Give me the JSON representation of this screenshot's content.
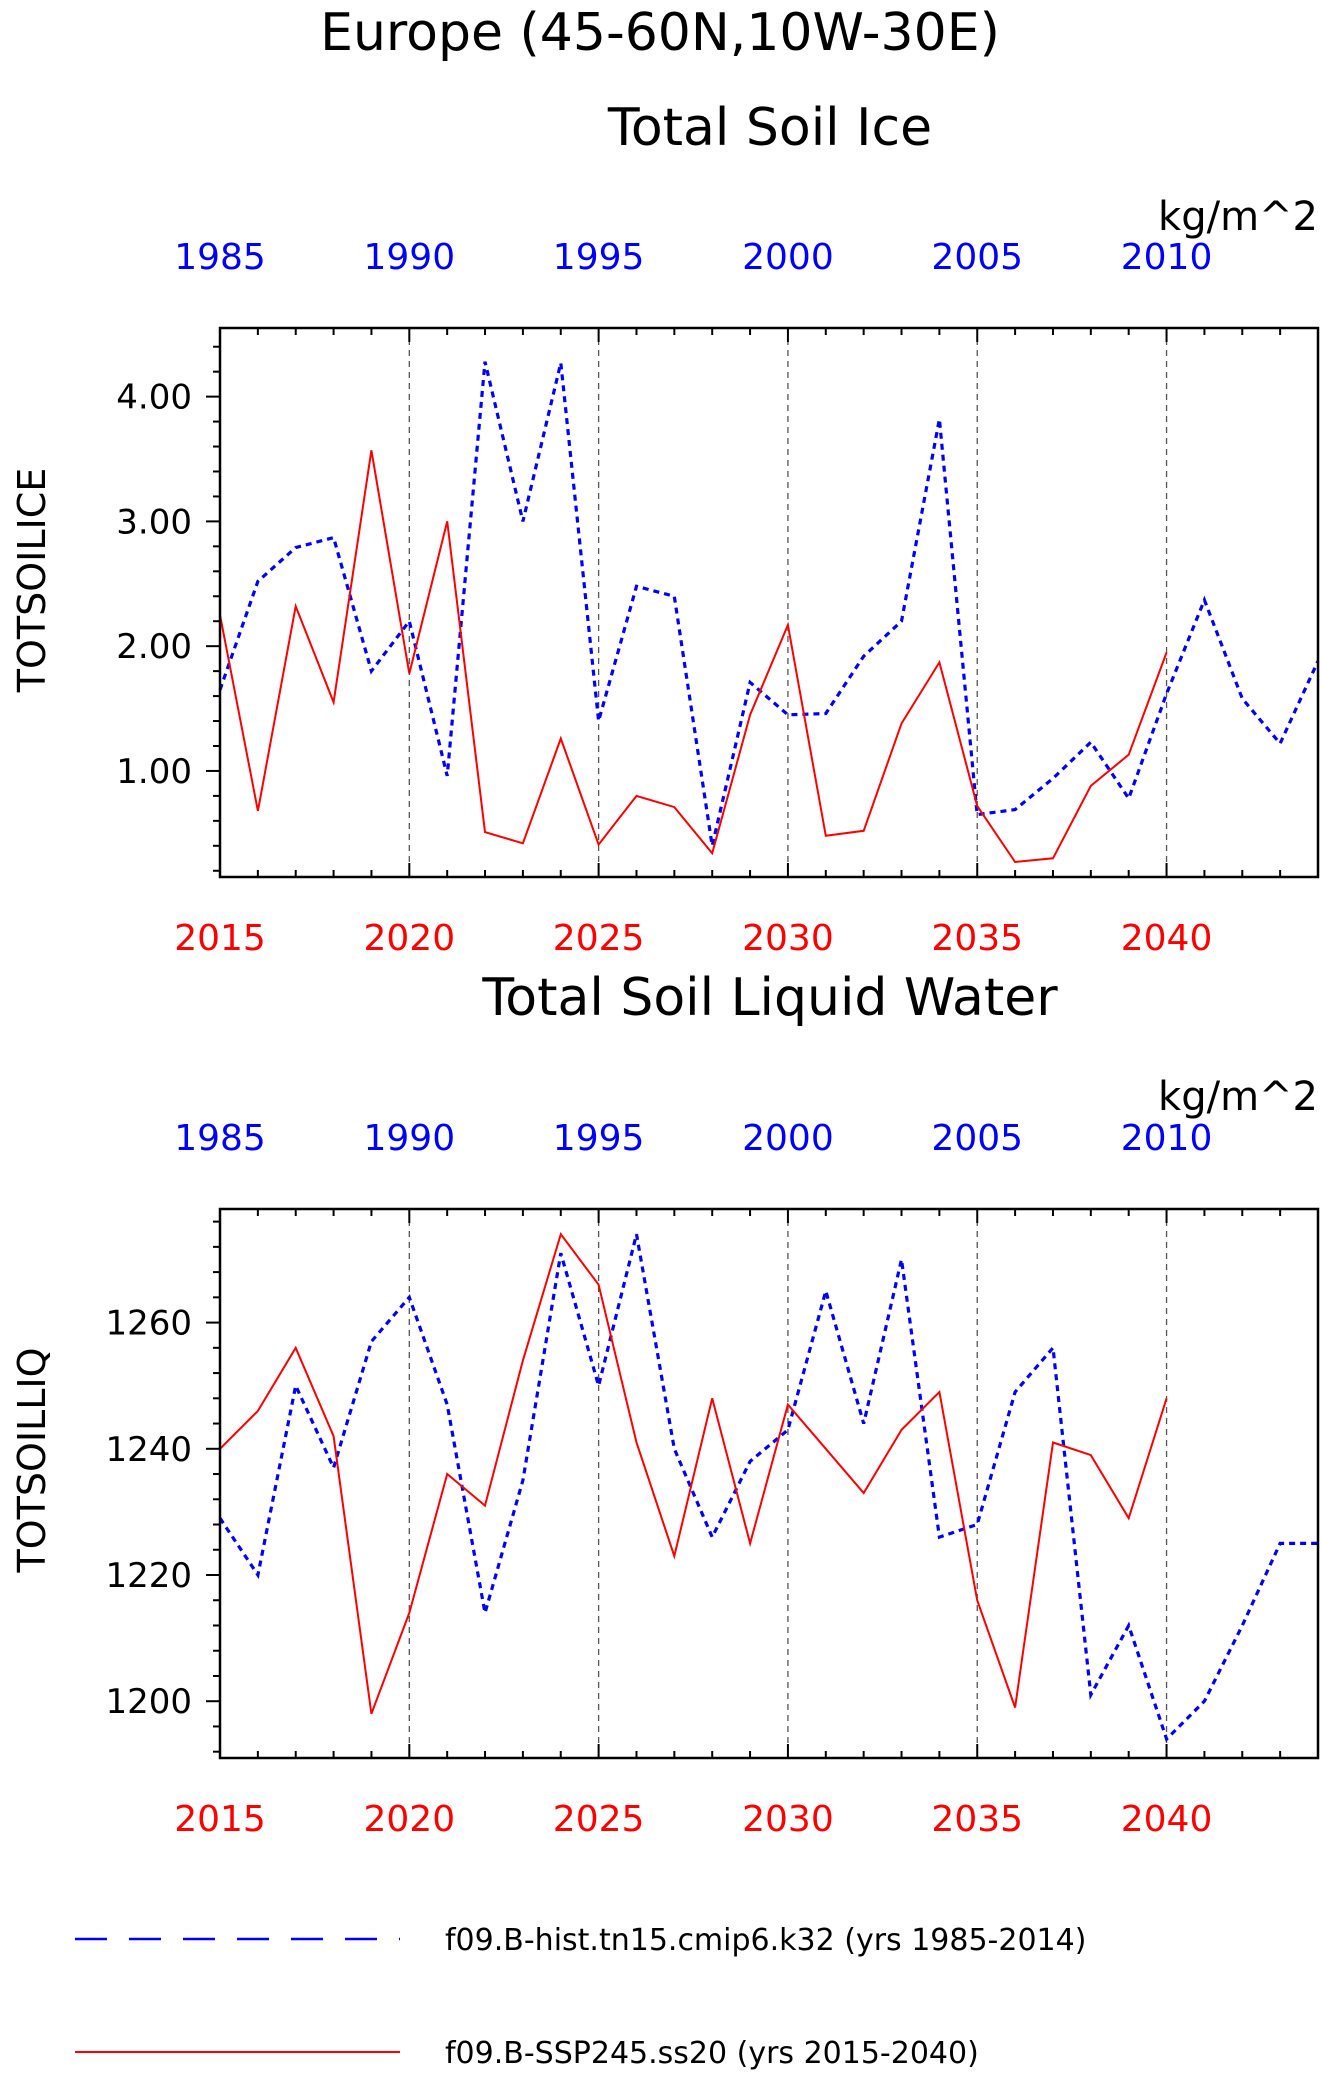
{
  "title": "Europe (45-60N,10W-30E)",
  "legend": [
    {
      "label": "f09.B-hist.tn15.cmip6.k32 (yrs 1985-2014)",
      "color": "#0000ff",
      "style": "dashed"
    },
    {
      "label": "f09.B-SSP245.ss20 (yrs 2015-2040)",
      "color": "#ff0000",
      "style": "solid"
    }
  ],
  "chart_data": [
    {
      "type": "line",
      "title": "Total Soil Ice",
      "units": "kg/m^2",
      "ylabel": "TOTSOILICE",
      "ylim": [
        0.15,
        4.55
      ],
      "yticks": [
        "1.00",
        "2.00",
        "3.00",
        "4.00"
      ],
      "ytick_values": [
        1,
        2,
        3,
        4
      ],
      "x_bottom": {
        "ticks": [
          "2015",
          "2020",
          "2025",
          "2030",
          "2035",
          "2040"
        ],
        "tick_values": [
          2015,
          2020,
          2025,
          2030,
          2035,
          2040
        ],
        "lim": [
          2015,
          2044
        ],
        "color": "#ff0000"
      },
      "x_top": {
        "ticks": [
          "1985",
          "1990",
          "1995",
          "2000",
          "2005",
          "2010"
        ],
        "tick_values": [
          1985,
          1990,
          1995,
          2000,
          2005,
          2010
        ],
        "lim": [
          1985,
          2014
        ],
        "color": "#0000ff"
      },
      "grid": "vertical dashed at labeled years",
      "series": [
        {
          "name": "f09.B-hist.tn15.cmip6.k32 (yrs 1985-2014)",
          "color": "#0000ff",
          "style": "dashed",
          "axis": "top",
          "x": [
            1985,
            1986,
            1987,
            1988,
            1989,
            1990,
            1991,
            1992,
            1993,
            1994,
            1995,
            1996,
            1997,
            1998,
            1999,
            2000,
            2001,
            2002,
            2003,
            2004,
            2005,
            2006,
            2007,
            2008,
            2009,
            2010,
            2011,
            2012,
            2013,
            2014
          ],
          "values": [
            1.65,
            2.52,
            2.79,
            2.87,
            1.8,
            2.2,
            0.96,
            4.28,
            3.0,
            4.27,
            1.4,
            2.48,
            2.4,
            0.4,
            1.71,
            1.45,
            1.46,
            1.92,
            2.2,
            3.82,
            0.65,
            0.69,
            0.94,
            1.23,
            0.78,
            1.62,
            2.37,
            1.58,
            1.22,
            1.88
          ]
        },
        {
          "name": "f09.B-SSP245.ss20 (yrs 2015-2040)",
          "color": "#ff0000",
          "style": "solid",
          "axis": "bottom",
          "x": [
            2015,
            2016,
            2017,
            2018,
            2019,
            2020,
            2021,
            2022,
            2023,
            2024,
            2025,
            2026,
            2027,
            2028,
            2029,
            2030,
            2031,
            2032,
            2033,
            2034,
            2035,
            2036,
            2037,
            2038,
            2039,
            2040
          ],
          "values": [
            2.25,
            0.68,
            2.32,
            1.55,
            3.57,
            1.78,
            3.0,
            0.51,
            0.42,
            1.26,
            0.41,
            0.8,
            0.71,
            0.34,
            1.45,
            2.17,
            0.48,
            0.52,
            1.38,
            1.87,
            0.72,
            0.27,
            0.3,
            0.88,
            1.13,
            1.95
          ]
        }
      ]
    },
    {
      "type": "line",
      "title": "Total Soil Liquid Water",
      "units": "kg/m^2",
      "ylabel": "TOTSOILLIQ",
      "ylim": [
        1191,
        1278
      ],
      "yticks": [
        "1200",
        "1220",
        "1240",
        "1260"
      ],
      "ytick_values": [
        1200,
        1220,
        1240,
        1260
      ],
      "x_bottom": {
        "ticks": [
          "2015",
          "2020",
          "2025",
          "2030",
          "2035",
          "2040"
        ],
        "tick_values": [
          2015,
          2020,
          2025,
          2030,
          2035,
          2040
        ],
        "lim": [
          2015,
          2044
        ],
        "color": "#ff0000"
      },
      "x_top": {
        "ticks": [
          "1985",
          "1990",
          "1995",
          "2000",
          "2005",
          "2010"
        ],
        "tick_values": [
          1985,
          1990,
          1995,
          2000,
          2005,
          2010
        ],
        "lim": [
          1985,
          2014
        ],
        "color": "#0000ff"
      },
      "grid": "vertical dashed at labeled years",
      "series": [
        {
          "name": "f09.B-hist.tn15.cmip6.k32 (yrs 1985-2014)",
          "color": "#0000ff",
          "style": "dashed",
          "axis": "top",
          "x": [
            1985,
            1986,
            1987,
            1988,
            1989,
            1990,
            1991,
            1992,
            1993,
            1994,
            1995,
            1996,
            1997,
            1998,
            1999,
            2000,
            2001,
            2002,
            2003,
            2004,
            2005,
            2006,
            2007,
            2008,
            2009,
            2010,
            2011,
            2012,
            2013,
            2014
          ],
          "values": [
            1229,
            1220,
            1250,
            1237,
            1257,
            1264,
            1247,
            1214,
            1235,
            1271,
            1250,
            1274,
            1240,
            1226,
            1238,
            1243,
            1265,
            1244,
            1270,
            1226,
            1228,
            1249,
            1256,
            1201,
            1212,
            1194,
            1200,
            1212,
            1225,
            1225
          ]
        },
        {
          "name": "f09.B-SSP245.ss20 (yrs 2015-2040)",
          "color": "#ff0000",
          "style": "solid",
          "axis": "bottom",
          "x": [
            2015,
            2016,
            2017,
            2018,
            2019,
            2020,
            2021,
            2022,
            2023,
            2024,
            2025,
            2026,
            2027,
            2028,
            2029,
            2030,
            2031,
            2032,
            2033,
            2034,
            2035,
            2036,
            2037,
            2038,
            2039,
            2040
          ],
          "values": [
            1240,
            1246,
            1256,
            1242,
            1198,
            1214,
            1236,
            1231,
            1254,
            1274,
            1266,
            1241,
            1223,
            1248,
            1225,
            1247,
            1240,
            1233,
            1243,
            1249,
            1216,
            1199,
            1241,
            1239,
            1229,
            1248
          ]
        }
      ]
    }
  ]
}
